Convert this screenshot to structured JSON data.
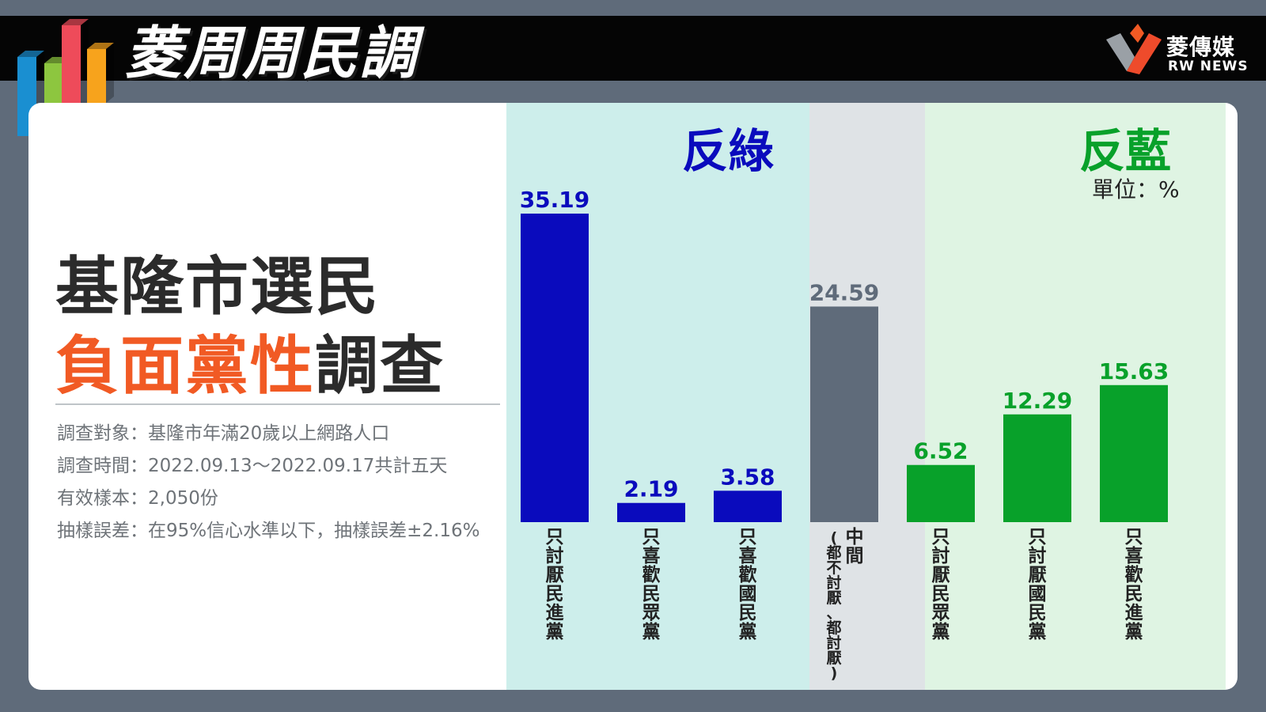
{
  "header": {
    "title": "菱周周民調",
    "brand_name": "菱傳媒",
    "brand_sub": "RW NEWS",
    "logo_colors": [
      "#1a8fd1",
      "#8dc63f",
      "#ee4b5a",
      "#f7a31c"
    ]
  },
  "headline": {
    "line1": "基隆市選民",
    "line2_accent": "負面黨性",
    "line2_rest": "調查"
  },
  "survey_info": [
    "調查對象：基隆市年滿20歲以上網路人口",
    "調查時間：2022.09.13～2022.09.17共計五天",
    "有效樣本：2,050份",
    "抽樣誤差：在95%信心水準以下，抽樣誤差±2.16%"
  ],
  "zones": {
    "left_label": "反綠",
    "right_label": "反藍",
    "unit": "單位：%"
  },
  "colors": {
    "anti_green": "#0a0bbd",
    "middle": "#5f6b7a",
    "anti_blue": "#08a12a",
    "accent": "#f15a24"
  },
  "chart_data": {
    "type": "bar",
    "categories": [
      "只討厭民進黨",
      "只喜歡民眾黨",
      "只喜歡國民黨",
      "中間(都不討厭、都討厭)",
      "只討厭民眾黨",
      "只討厭國民黨",
      "只喜歡民進黨"
    ],
    "category_lines": [
      [
        "只討厭民進黨"
      ],
      [
        "只喜歡民眾黨"
      ],
      [
        "只喜歡國民黨"
      ],
      [
        "中間",
        "(都不討厭、都討厭)"
      ],
      [
        "只討厭民眾黨"
      ],
      [
        "只討厭國民黨"
      ],
      [
        "只喜歡民進黨"
      ]
    ],
    "values": [
      35.19,
      2.19,
      3.58,
      24.59,
      6.52,
      12.29,
      15.63
    ],
    "value_labels": [
      "35.19",
      "2.19",
      "3.58",
      "24.59",
      "6.52",
      "12.29",
      "15.63"
    ],
    "groups": [
      "反綠",
      "反綠",
      "反綠",
      "中間",
      "反藍",
      "反藍",
      "反藍"
    ],
    "bar_colors": [
      "#0a0bbd",
      "#0a0bbd",
      "#0a0bbd",
      "#5f6b7a",
      "#08a12a",
      "#08a12a",
      "#08a12a"
    ],
    "label_colors": [
      "#0a0bbd",
      "#0a0bbd",
      "#0a0bbd",
      "#5f6b7a",
      "#08a12a",
      "#08a12a",
      "#08a12a"
    ],
    "ylim": [
      0,
      35.19
    ],
    "grid": false,
    "legend": "none"
  }
}
